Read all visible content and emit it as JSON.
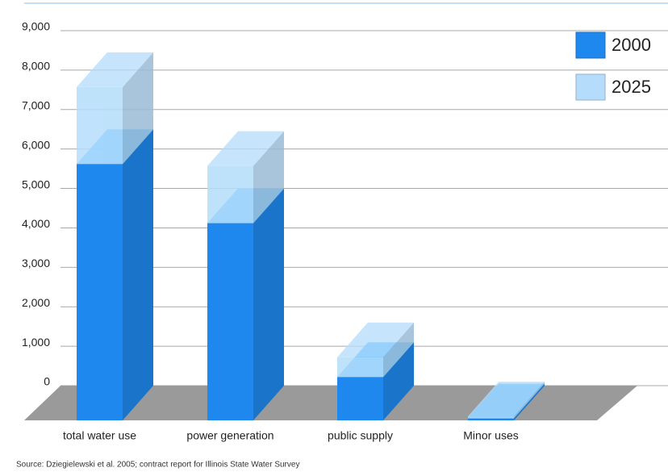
{
  "chart_data": {
    "type": "bar3d_stacked",
    "categories": [
      "total water use",
      "power generation",
      "public supply",
      "Minor uses"
    ],
    "series": [
      {
        "name": "2000",
        "color": "#1e88ee",
        "values": [
          6500,
          5000,
          1100,
          50
        ]
      },
      {
        "name": "2025",
        "color": "#b5ddfb",
        "values": [
          1950,
          1450,
          500,
          50
        ]
      }
    ],
    "ylim": [
      0,
      9000
    ],
    "yticks": [
      0,
      {
        "value": 1000,
        "label": "1,000"
      },
      {
        "value": 2000,
        "label": "2,000"
      },
      {
        "value": 3000,
        "label": "3,000"
      },
      {
        "value": 4000,
        "label": "4,000"
      },
      {
        "value": 5000,
        "label": "5,000"
      },
      {
        "value": 6000,
        "label": "6,000"
      },
      {
        "value": 7000,
        "label": "7,000"
      },
      {
        "value": 8000,
        "label": "8,000"
      },
      {
        "value": 9000,
        "label": "9,000"
      }
    ],
    "grid": true,
    "legend": "top-right",
    "source": "Source: Dziegielewski et al. 2005; contract report for Illinois State Water Survey"
  }
}
